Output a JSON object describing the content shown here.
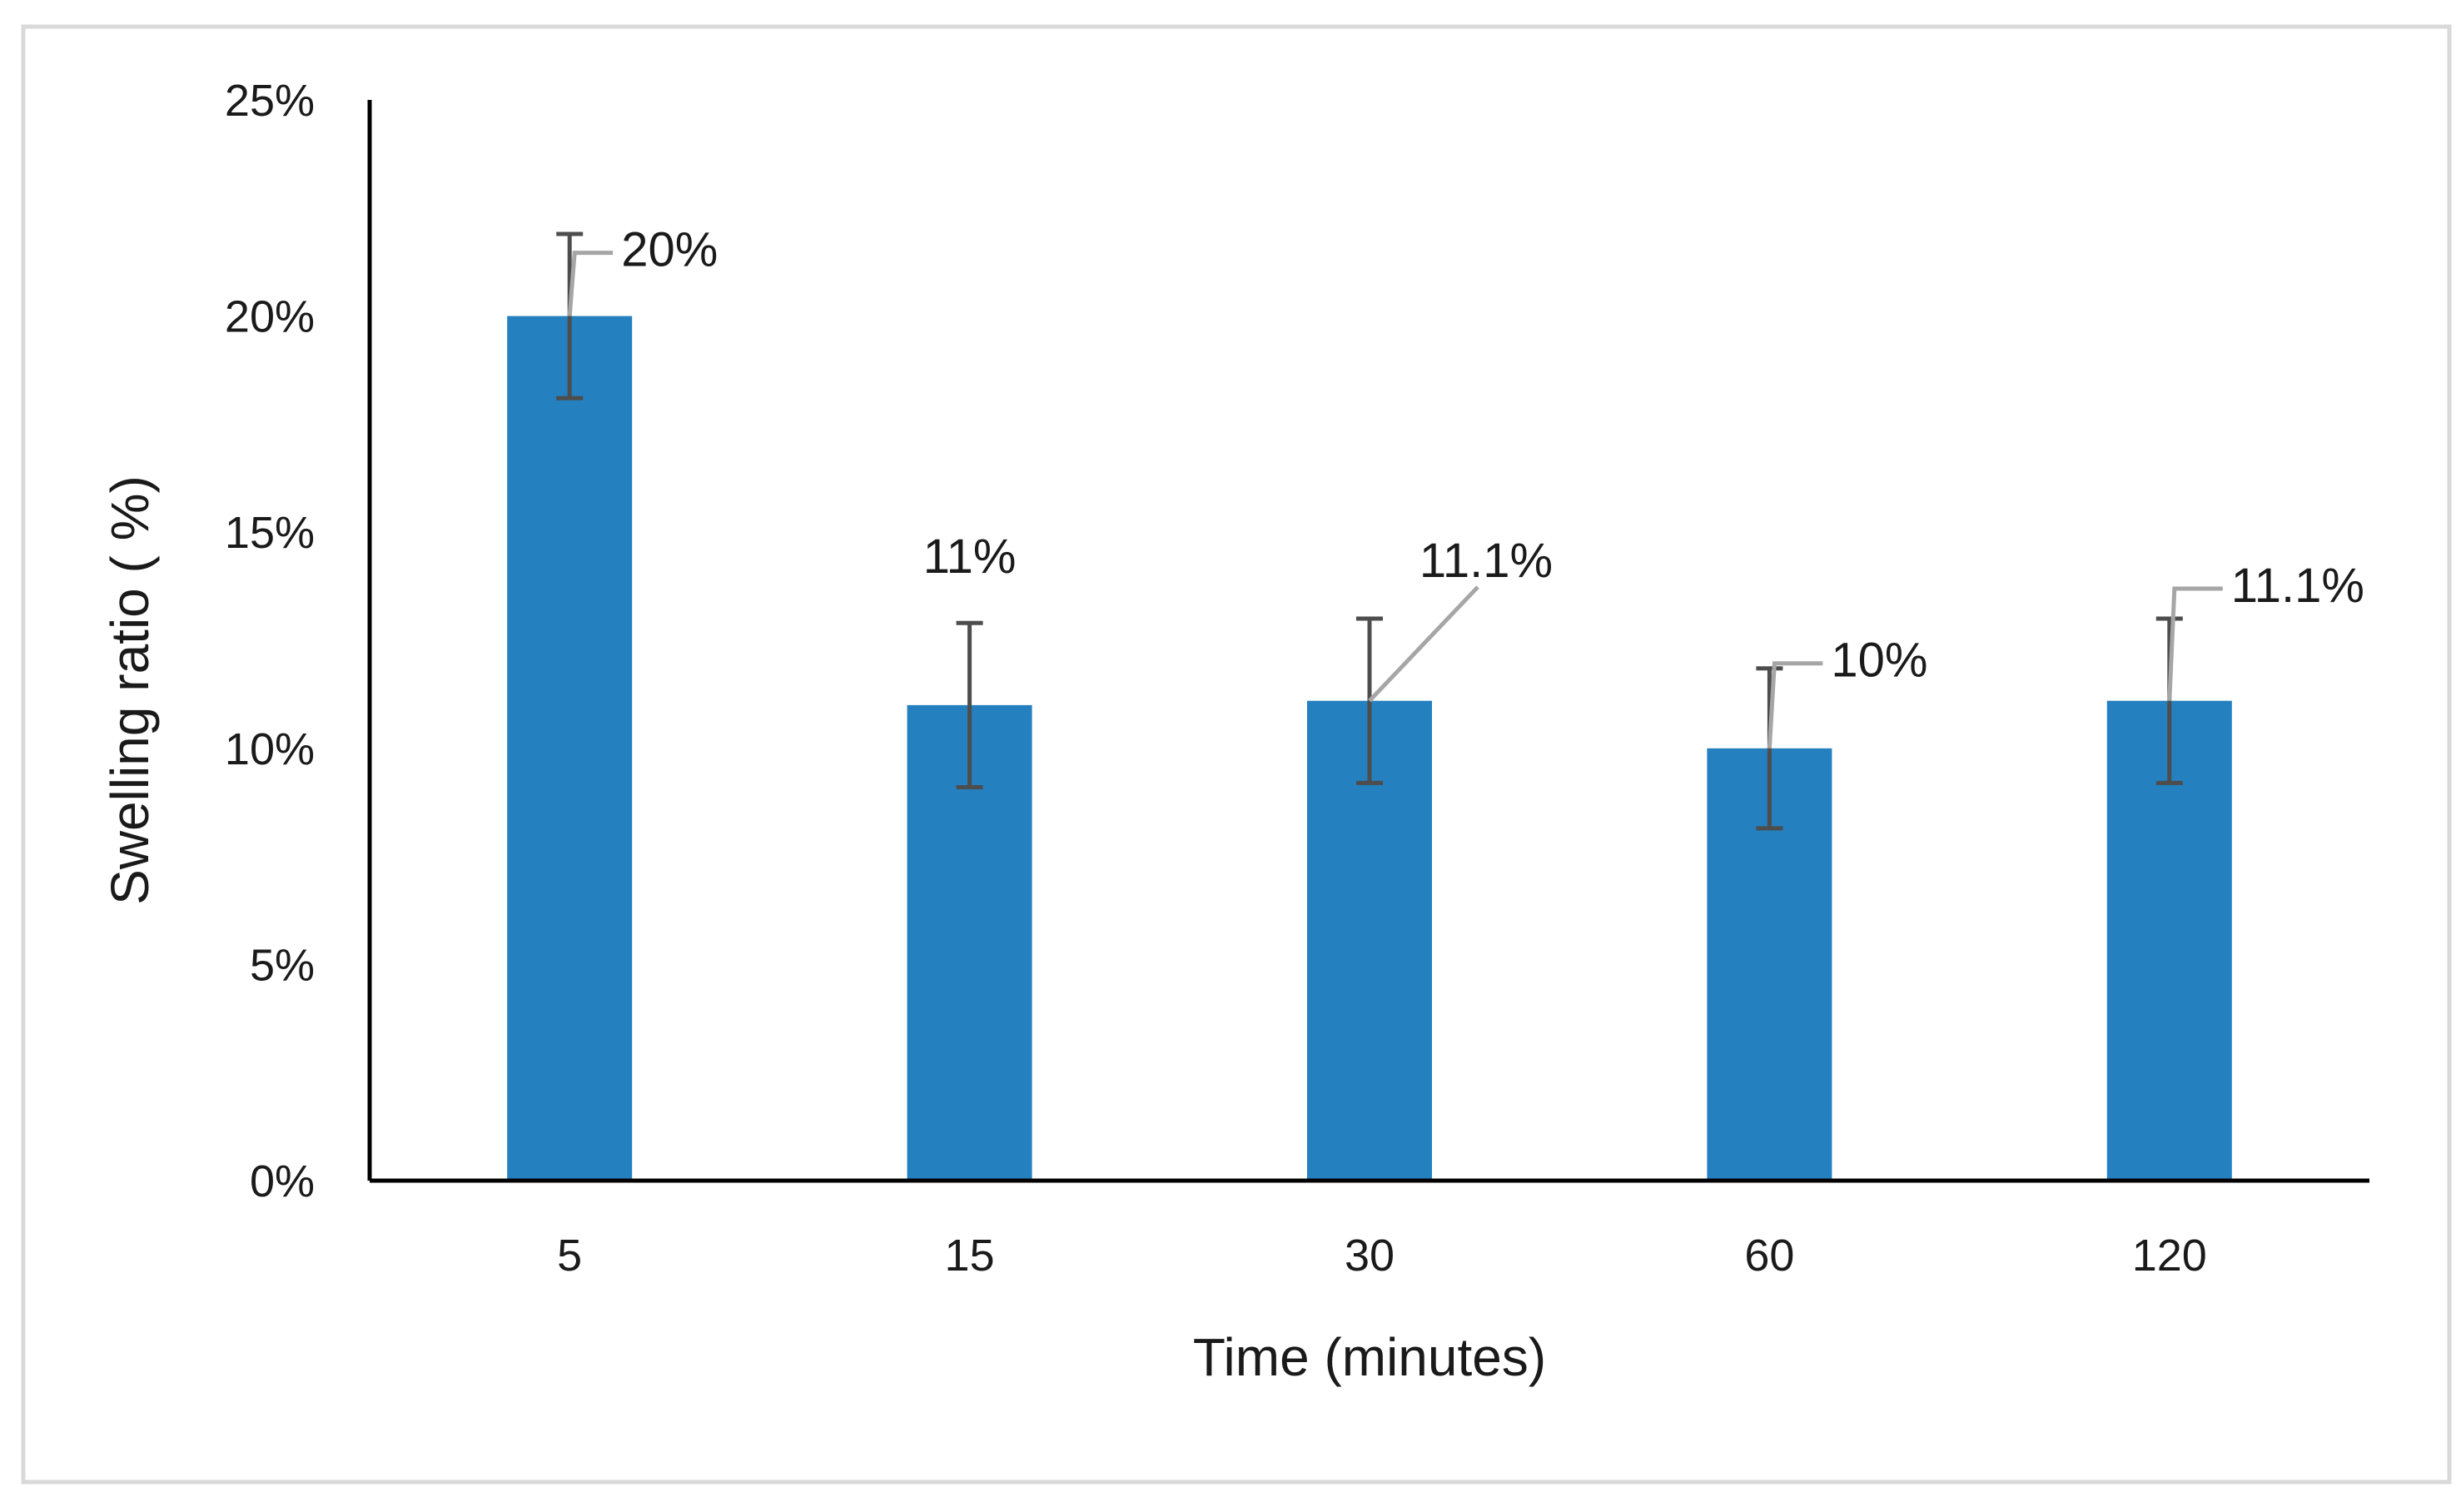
{
  "chart_data": {
    "type": "bar",
    "xlabel": "Time (minutes)",
    "ylabel": "Swelling ratio ( %)",
    "categories": [
      "5",
      "15",
      "30",
      "60",
      "120"
    ],
    "values": [
      20,
      11,
      11.1,
      10,
      11.1
    ],
    "error": [
      1.9,
      1.9,
      1.9,
      1.85,
      1.9
    ],
    "data_labels": [
      "20%",
      "11%",
      "11.1%",
      "10%",
      "11.1%"
    ],
    "ylim": [
      0,
      25
    ],
    "y_ticks": [
      0,
      5,
      10,
      15,
      20,
      25
    ],
    "y_tick_labels": [
      "0%",
      "5%",
      "10%",
      "15%",
      "20%",
      "25%"
    ],
    "grid": false,
    "legend": "none",
    "colors": {
      "bar": "#2480bf",
      "error_bar": "#4d4d4d",
      "leader_line": "#a6a6a6",
      "axis": "#000000",
      "frame_border": "#d9d9d9"
    }
  }
}
